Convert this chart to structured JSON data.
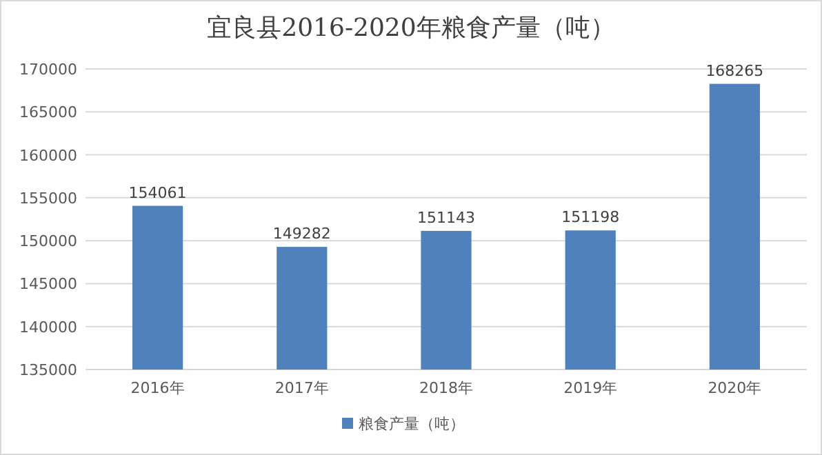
{
  "chart_data": {
    "type": "bar",
    "title": "宜良县2016-2020年粮食产量（吨）",
    "categories": [
      "2016年",
      "2017年",
      "2018年",
      "2019年",
      "2020年"
    ],
    "series": [
      {
        "name": "粮食产量（吨）",
        "color": "#4f81bd",
        "values": [
          154061,
          149282,
          151143,
          151198,
          168265
        ]
      }
    ],
    "ylim": [
      135000,
      170000
    ],
    "yticks": [
      135000,
      140000,
      145000,
      150000,
      155000,
      160000,
      165000,
      170000
    ],
    "grid": "y",
    "legend": "bottom",
    "data_labels": true
  }
}
